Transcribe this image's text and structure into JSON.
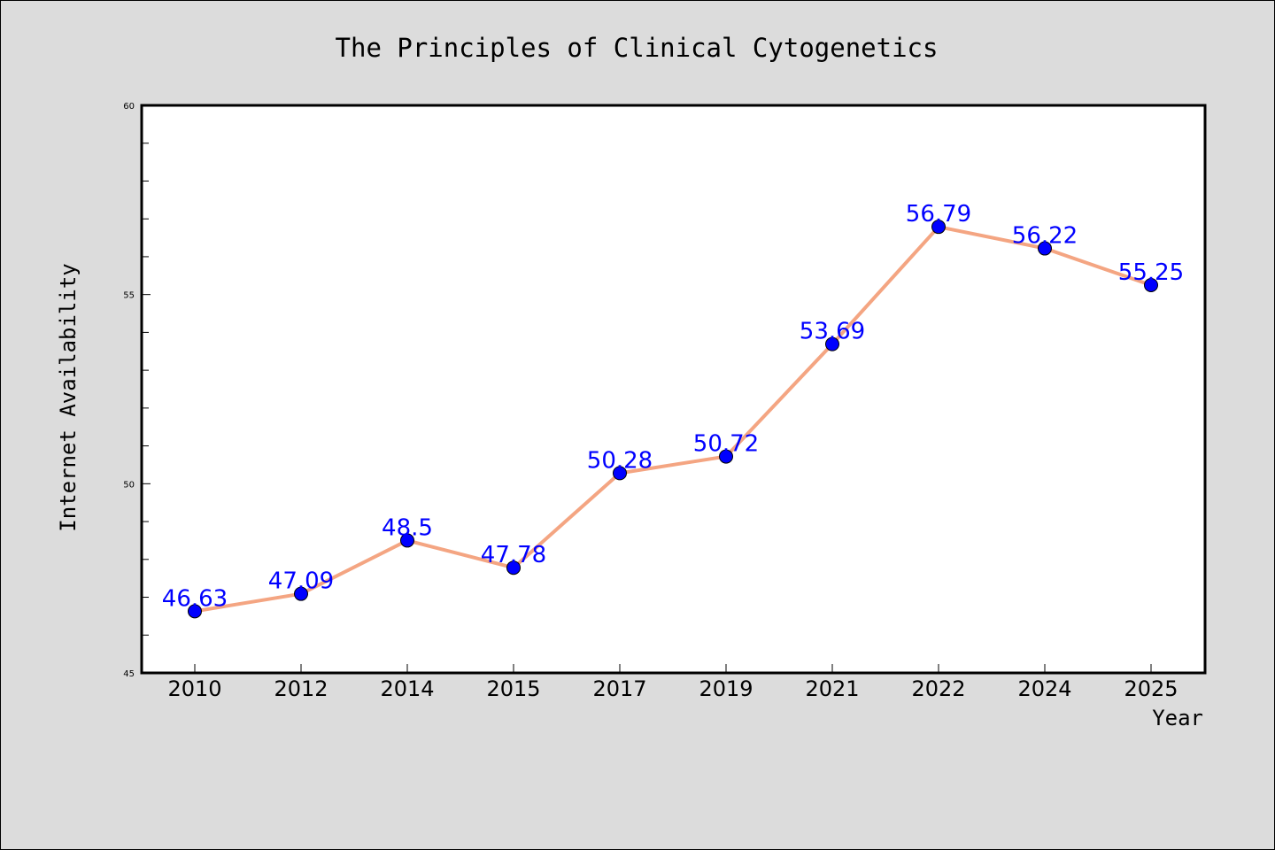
{
  "chart_data": {
    "type": "line",
    "title": "The Principles of Clinical Cytogenetics",
    "xlabel": "Year",
    "ylabel": "Internet Availability",
    "categories": [
      "2010",
      "2012",
      "2014",
      "2015",
      "2017",
      "2019",
      "2021",
      "2022",
      "2024",
      "2025"
    ],
    "series": [
      {
        "values": [
          46.63,
          47.09,
          48.5,
          47.78,
          50.28,
          50.72,
          53.69,
          56.79,
          56.22,
          55.25
        ],
        "data_labels": [
          "46.63",
          "47.09",
          "48.5",
          "47.78",
          "50.28",
          "50.72",
          "53.69",
          "56.79",
          "56.22",
          "55.25"
        ]
      }
    ],
    "ylim": [
      45,
      60
    ],
    "yticks": [
      "45",
      "50",
      "55",
      "60"
    ],
    "grid": false,
    "legend": "none",
    "colors": {
      "line": "#f4a582",
      "marker": "#0000ff",
      "data_label": "#0000ff",
      "background": "#dcdcdc",
      "plot_background": "#ffffff"
    }
  }
}
